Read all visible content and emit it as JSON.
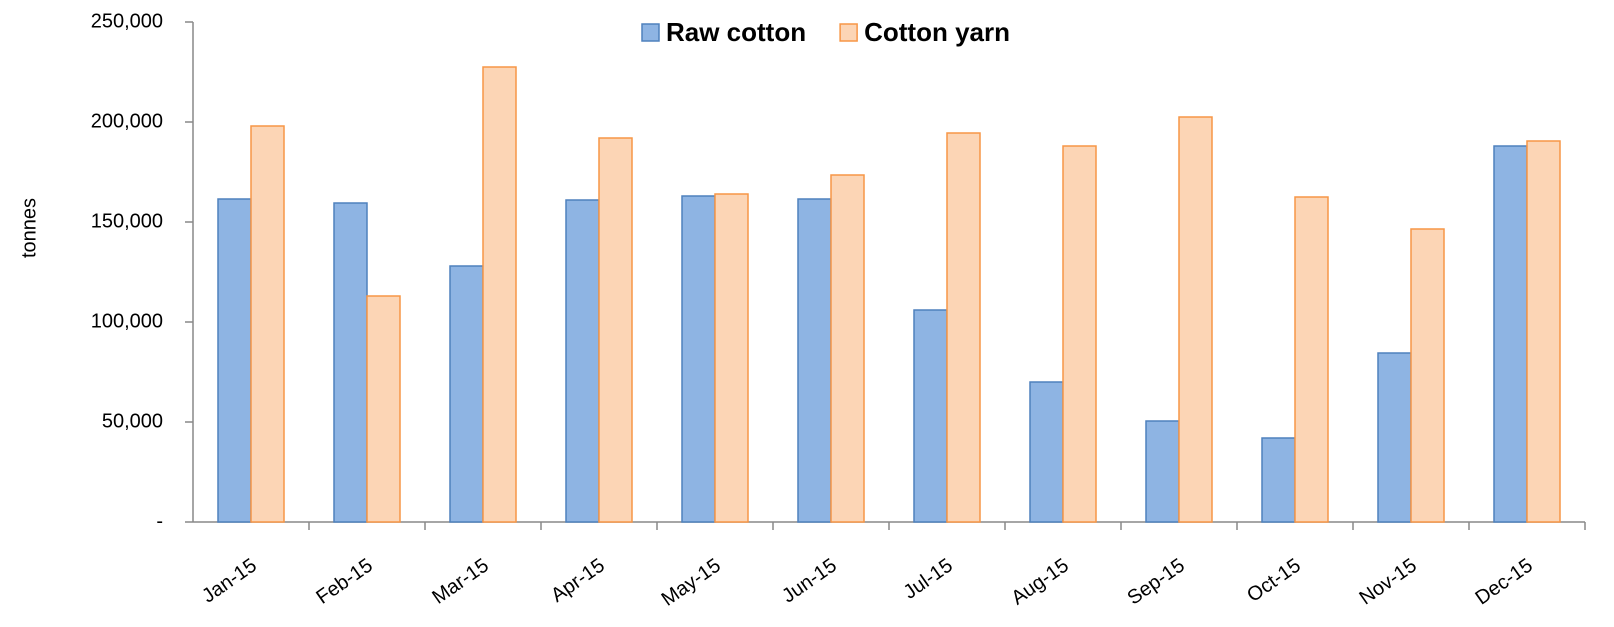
{
  "chart_data": {
    "type": "bar",
    "y_label": "tonnes",
    "categories": [
      "Jan-15",
      "Feb-15",
      "Mar-15",
      "Apr-15",
      "May-15",
      "Jun-15",
      "Jul-15",
      "Aug-15",
      "Sep-15",
      "Oct-15",
      "Nov-15",
      "Dec-15"
    ],
    "series": [
      {
        "name": "Raw cotton",
        "color": "#8eb4e3",
        "edge": "#4f81bd",
        "values": [
          161500,
          159500,
          128000,
          161000,
          163000,
          161500,
          106000,
          70000,
          50500,
          42000,
          84500,
          188000
        ]
      },
      {
        "name": "Cotton yarn",
        "color": "#fcd5b5",
        "edge": "#f79646",
        "values": [
          198000,
          113000,
          227500,
          192000,
          164000,
          173500,
          194500,
          188000,
          202500,
          162500,
          146500,
          190500
        ]
      }
    ],
    "ylim": [
      0,
      250000
    ],
    "yticks": [
      {
        "value": 0,
        "label": "-"
      },
      {
        "value": 50000,
        "label": "50,000"
      },
      {
        "value": 100000,
        "label": "100,000"
      },
      {
        "value": 150000,
        "label": "150,000"
      },
      {
        "value": 200000,
        "label": "200,000"
      },
      {
        "value": 250000,
        "label": "250,000"
      }
    ],
    "legend": "top"
  }
}
